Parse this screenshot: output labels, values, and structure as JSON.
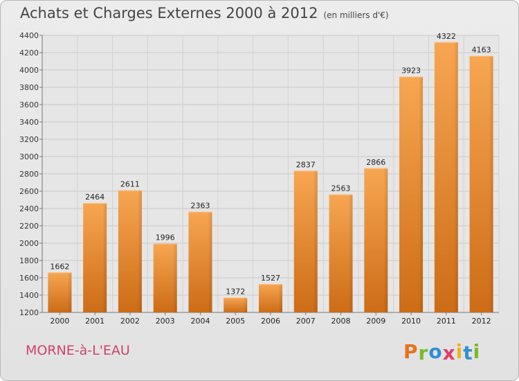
{
  "chart_data": {
    "type": "bar",
    "title": "Achats et Charges Externes 2000 à 2012",
    "subtitle": "(en milliers d'€)",
    "categories": [
      "2000",
      "2001",
      "2002",
      "2003",
      "2004",
      "2005",
      "2006",
      "2007",
      "2008",
      "2009",
      "2010",
      "2011",
      "2012"
    ],
    "values": [
      1662,
      2464,
      2611,
      1996,
      2363,
      1372,
      1527,
      2837,
      2563,
      2866,
      3923,
      4322,
      4163
    ],
    "ylim": [
      1200,
      4400
    ],
    "ytick_step": 200,
    "grid": true,
    "bar_color": "#f29a3c",
    "xlabel": "",
    "ylabel": ""
  },
  "footer": {
    "commune": "MORNE-à-L'EAU",
    "brand_letters": [
      "P",
      "r",
      "o",
      "x",
      "i",
      "t",
      "i"
    ],
    "brand_colors": [
      "#e8731a",
      "#7ab829",
      "#2f8fd8",
      "#e23b6b",
      "#f2b215",
      "#2f8fd8",
      "#7ab829"
    ]
  }
}
